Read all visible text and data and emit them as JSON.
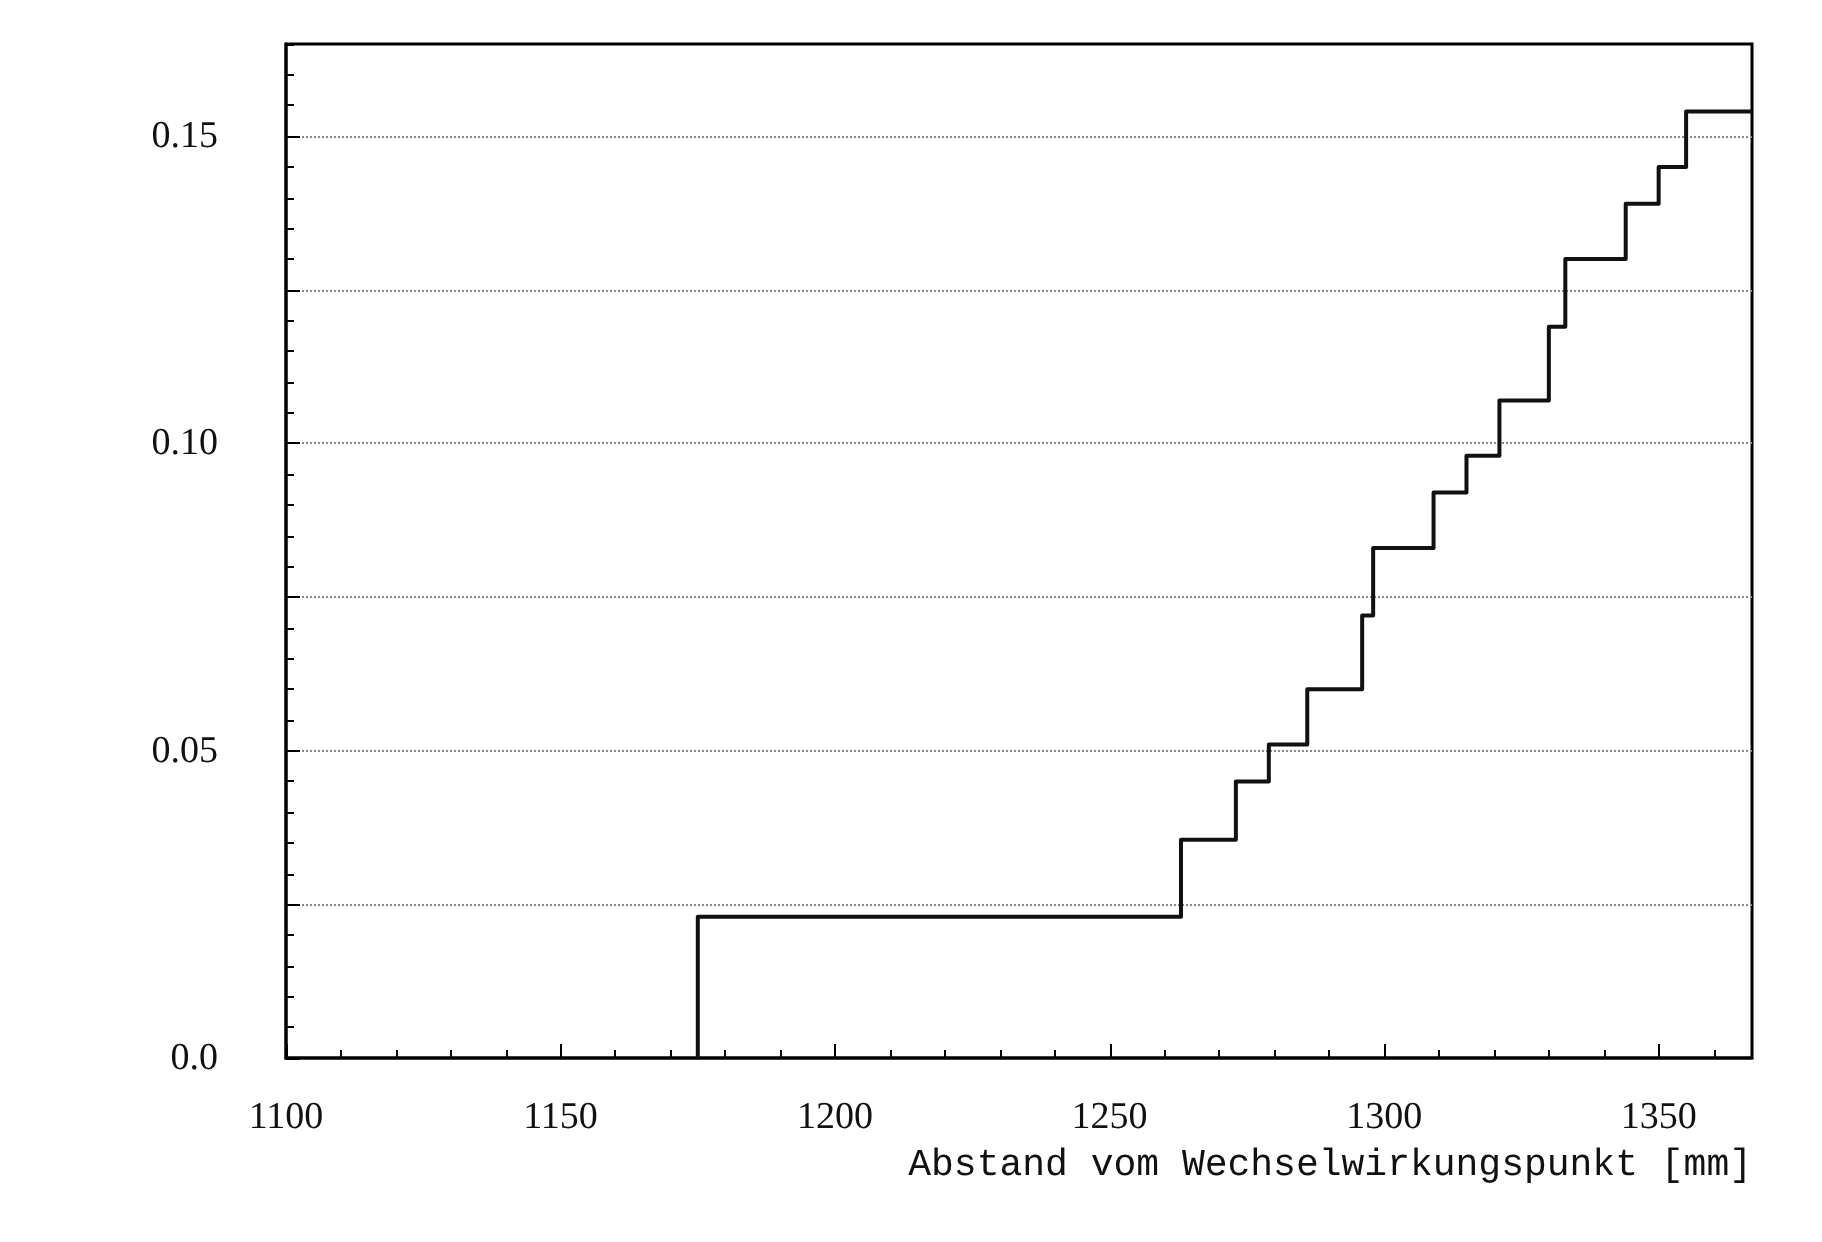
{
  "chart_data": {
    "type": "step",
    "xlabel": "Abstand vom Wechselwirkungspunkt [mm]",
    "x": [
      1175,
      1175,
      1263,
      1273,
      1279,
      1286,
      1296,
      1298,
      1309,
      1315,
      1321,
      1330,
      1333,
      1344,
      1350,
      1355,
      1367
    ],
    "series": [
      {
        "color": "#111111",
        "values": [
          0,
          0.023,
          0.0355,
          0.045,
          0.051,
          0.06,
          0.072,
          0.083,
          0.092,
          0.098,
          0.107,
          0.119,
          0.13,
          0.139,
          0.145,
          0.154,
          0.154
        ]
      }
    ],
    "xlim": [
      1100,
      1367
    ],
    "xticks": [
      1100,
      1150,
      1200,
      1250,
      1300,
      1350
    ],
    "ylim": [
      0,
      0.165
    ],
    "yticks": [
      {
        "value": 0,
        "label": "0.0"
      },
      {
        "value": 0.025,
        "label": null
      },
      0.05,
      {
        "value": 0.075,
        "label": null
      },
      {
        "value": 0.1,
        "label": "0.10"
      },
      {
        "value": 0.125,
        "label": null
      },
      0.15
    ],
    "grid": "y",
    "marker": "none",
    "line_style": "solid"
  }
}
